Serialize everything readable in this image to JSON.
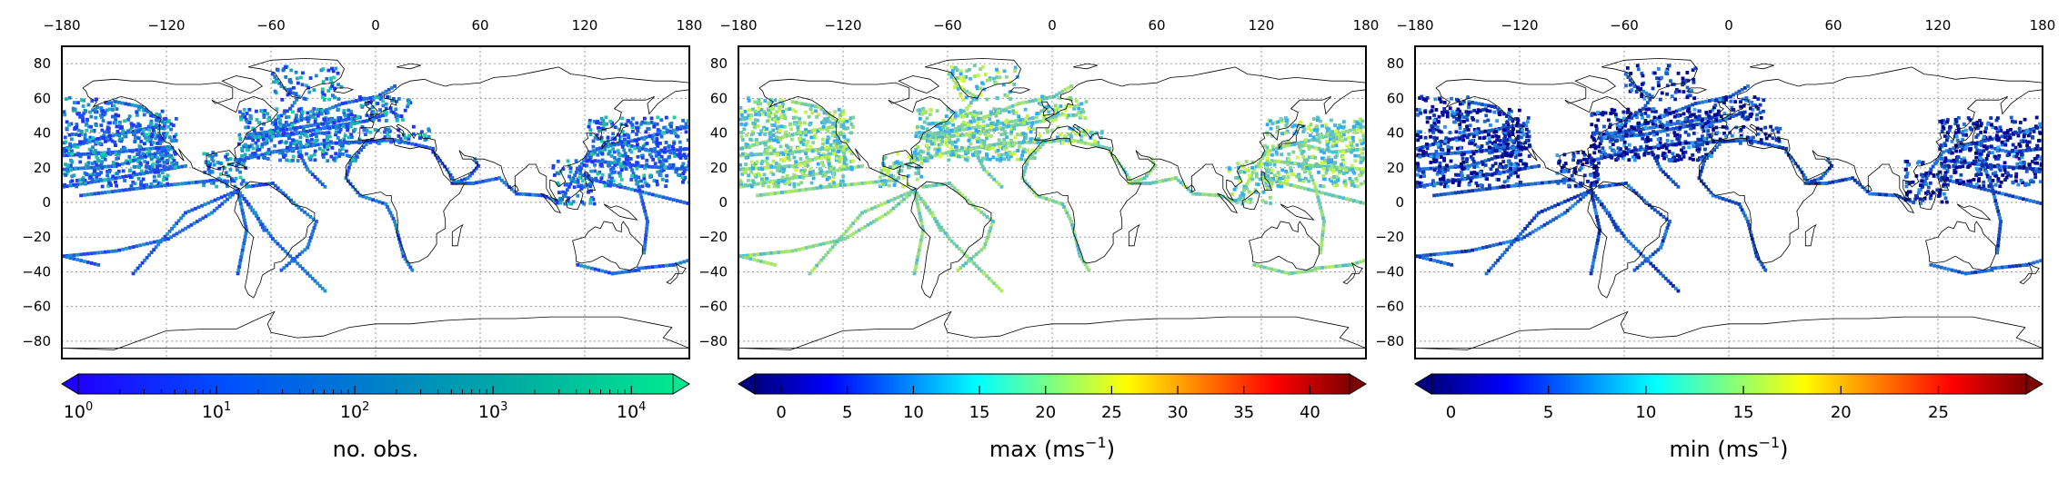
{
  "chart_data": [
    {
      "type": "heatmap",
      "geo": true,
      "quantity": "number of observations per grid cell",
      "xticks": [
        -180,
        -120,
        -60,
        0,
        60,
        120,
        180
      ],
      "yticks": [
        80,
        60,
        40,
        20,
        0,
        -20,
        -40,
        -60,
        -80
      ],
      "xlim": [
        -180,
        180
      ],
      "ylim": [
        -90,
        90
      ],
      "grid": true,
      "colorbar": {
        "scale": "log",
        "min": 1,
        "max": 20000,
        "extend": "both",
        "colormap": [
          "#1f00ff",
          "#0050ff",
          "#0080c8",
          "#00b0a0",
          "#00e890"
        ],
        "ticks": [
          {
            "base": "10",
            "exp": "0",
            "value": 1
          },
          {
            "base": "10",
            "exp": "1",
            "value": 10
          },
          {
            "base": "10",
            "exp": "2",
            "value": 100
          },
          {
            "base": "10",
            "exp": "3",
            "value": 1000
          },
          {
            "base": "10",
            "exp": "4",
            "value": 10000
          }
        ]
      },
      "label": {
        "main": "no. obs.",
        "sup": ""
      }
    },
    {
      "type": "heatmap",
      "geo": true,
      "quantity": "maximum wind speed",
      "xticks": [
        -180,
        -120,
        -60,
        0,
        60,
        120,
        180
      ],
      "yticks": [
        80,
        60,
        40,
        20,
        0,
        -20,
        -40,
        -60,
        -80
      ],
      "xlim": [
        -180,
        180
      ],
      "ylim": [
        -90,
        90
      ],
      "grid": true,
      "colorbar": {
        "scale": "linear",
        "min": -2,
        "max": 43,
        "extend": "both",
        "colormap": [
          "#00007f",
          "#0000ff",
          "#007fff",
          "#00ffff",
          "#7fff7f",
          "#ffff00",
          "#ff7f00",
          "#ff0000",
          "#7f0000"
        ],
        "ticks": [
          {
            "label": "0",
            "value": 0
          },
          {
            "label": "5",
            "value": 5
          },
          {
            "label": "10",
            "value": 10
          },
          {
            "label": "15",
            "value": 15
          },
          {
            "label": "20",
            "value": 20
          },
          {
            "label": "25",
            "value": 25
          },
          {
            "label": "30",
            "value": 30
          },
          {
            "label": "35",
            "value": 35
          },
          {
            "label": "40",
            "value": 40
          }
        ]
      },
      "label": {
        "main": "max (ms",
        "sup": "−1",
        "close": ")"
      }
    },
    {
      "type": "heatmap",
      "geo": true,
      "quantity": "minimum wind speed",
      "xticks": [
        -180,
        -120,
        -60,
        0,
        60,
        120,
        180
      ],
      "yticks": [
        80,
        60,
        40,
        20,
        0,
        -20,
        -40,
        -60,
        -80
      ],
      "xlim": [
        -180,
        180
      ],
      "ylim": [
        -90,
        90
      ],
      "grid": true,
      "colorbar": {
        "scale": "linear",
        "min": -1,
        "max": 29.5,
        "extend": "both",
        "colormap": [
          "#00007f",
          "#0000ff",
          "#007fff",
          "#00ffff",
          "#7fff7f",
          "#ffff00",
          "#ff7f00",
          "#ff0000",
          "#7f0000"
        ],
        "ticks": [
          {
            "label": "0",
            "value": 0
          },
          {
            "label": "5",
            "value": 5
          },
          {
            "label": "10",
            "value": 10
          },
          {
            "label": "15",
            "value": 15
          },
          {
            "label": "20",
            "value": 20
          },
          {
            "label": "25",
            "value": 25
          }
        ]
      },
      "label": {
        "main": "min (ms",
        "sup": "−1",
        "close": ")"
      }
    }
  ],
  "colors": {
    "coast": "#000000",
    "grid": "#9a9a9a",
    "obs_low": "#1f2dff",
    "obs_high": "#1fd8a0",
    "max_low": "#2aa8ff",
    "max_high": "#d8ff30",
    "min_low": "#000090",
    "min_high": "#30b0ff"
  }
}
